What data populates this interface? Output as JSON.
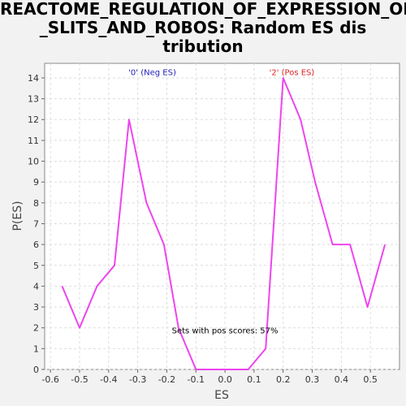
{
  "title": "REACTOME_REGULATION_OF_EXPRESSION_OF_SLITS_AND_ROBOS: Random ES distribution",
  "chart_data": {
    "type": "line",
    "title": "REACTOME_REGULATION_OF_EXPRESSION_OF_SLITS_AND_ROBOS: Random ES distribution",
    "xlabel": "ES",
    "ylabel": "P(ES)",
    "xlim": [
      -0.62,
      0.6
    ],
    "ylim": [
      0,
      14.7
    ],
    "xticks": [
      -0.6,
      -0.5,
      -0.4,
      -0.3,
      -0.2,
      -0.1,
      0.0,
      0.1,
      0.2,
      0.3,
      0.4,
      0.5
    ],
    "yticks": [
      0,
      1,
      2,
      3,
      4,
      5,
      6,
      7,
      8,
      9,
      10,
      11,
      12,
      13,
      14
    ],
    "grid": true,
    "series": [
      {
        "color": "#ee44ee",
        "x": [
          -0.56,
          -0.5,
          -0.44,
          -0.38,
          -0.33,
          -0.27,
          -0.21,
          -0.16,
          -0.1,
          -0.04,
          0.02,
          0.08,
          0.14,
          0.2,
          0.26,
          0.31,
          0.37,
          0.43,
          0.49,
          0.55
        ],
        "y": [
          4,
          2,
          4,
          5,
          12,
          8,
          6,
          2,
          0,
          0,
          0,
          0,
          1,
          14,
          12,
          9,
          6,
          6,
          3,
          6
        ]
      }
    ],
    "annotations": [
      {
        "text": "'0' (Neg ES)",
        "x": -0.25,
        "y": 14.3,
        "color": "#2222bb"
      },
      {
        "text": "'2' (Pos ES)",
        "x": 0.23,
        "y": 14.3,
        "color": "#dd2222"
      },
      {
        "text": "Sets with pos scores: 57%",
        "x": 0.0,
        "y": 1.9,
        "color": "#000000"
      }
    ]
  }
}
